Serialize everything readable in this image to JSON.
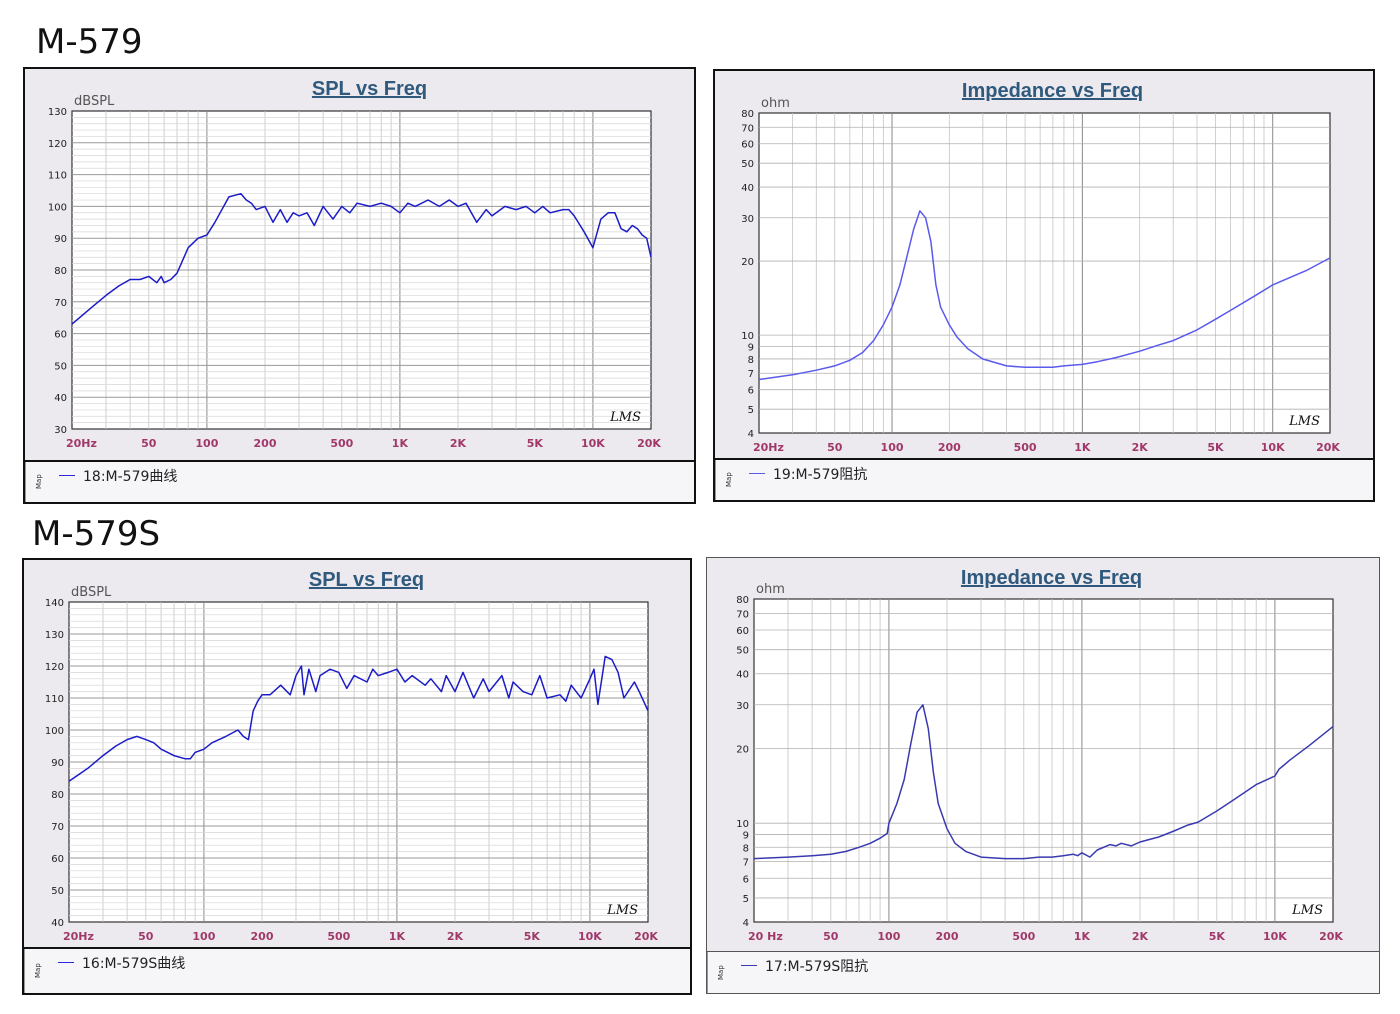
{
  "headings": {
    "top": "M-579",
    "bottom": "M-579S"
  },
  "charts": [
    {
      "id": "spl1",
      "chart_data": {
        "type": "line",
        "title": "SPL vs Freq",
        "ylabel": "dBSPL",
        "xscale": "log",
        "xlim": [
          20,
          20000
        ],
        "ylim": [
          30,
          130
        ],
        "yticks": [
          30,
          40,
          50,
          60,
          70,
          80,
          90,
          100,
          110,
          120,
          130
        ],
        "xtick_labels": [
          [
            "20Hz",
            20
          ],
          [
            "50",
            50
          ],
          [
            "100",
            100
          ],
          [
            "200",
            200
          ],
          [
            "500",
            500
          ],
          [
            "1K",
            1000
          ],
          [
            "2K",
            2000
          ],
          [
            "5K",
            5000
          ],
          [
            "10K",
            10000
          ],
          [
            "20K",
            20000
          ]
        ],
        "grid": true,
        "watermark": "LMS",
        "legend": "bottom",
        "series": [
          {
            "name": "18:M-579曲线",
            "color": "#1c1cc8",
            "x": [
              20,
              25,
              30,
              35,
              40,
              45,
              50,
              55,
              58,
              60,
              65,
              70,
              80,
              90,
              100,
              110,
              130,
              150,
              160,
              170,
              180,
              200,
              220,
              240,
              260,
              280,
              300,
              330,
              360,
              400,
              450,
              500,
              550,
              600,
              700,
              800,
              900,
              1000,
              1100,
              1200,
              1400,
              1600,
              1800,
              2000,
              2200,
              2500,
              2800,
              3000,
              3500,
              4000,
              4500,
              5000,
              5500,
              6000,
              7000,
              7500,
              8000,
              9000,
              10000,
              11000,
              12000,
              13000,
              14000,
              15000,
              16000,
              17000,
              18000,
              19000,
              20000
            ],
            "y": [
              63,
              68,
              72,
              75,
              77,
              77,
              78,
              76,
              78,
              76,
              77,
              79,
              87,
              90,
              91,
              95,
              103,
              104,
              102,
              101,
              99,
              100,
              95,
              99,
              95,
              98,
              97,
              98,
              94,
              100,
              96,
              100,
              98,
              101,
              100,
              101,
              100,
              98,
              101,
              100,
              102,
              100,
              102,
              100,
              101,
              95,
              99,
              97,
              100,
              99,
              100,
              98,
              100,
              98,
              99,
              99,
              97,
              92,
              87,
              96,
              98,
              98,
              93,
              92,
              94,
              93,
              91,
              90,
              84
            ]
          }
        ]
      }
    },
    {
      "id": "imp1",
      "chart_data": {
        "type": "line",
        "title": "Impedance vs Freq",
        "ylabel": "ohm",
        "xscale": "log",
        "yscale": "log",
        "xlim": [
          20,
          20000
        ],
        "ylim": [
          4,
          80
        ],
        "yticks": [
          4,
          5,
          6,
          7,
          8,
          9,
          10,
          20,
          30,
          40,
          50,
          60,
          70,
          80
        ],
        "xtick_labels": [
          [
            "20Hz",
            20
          ],
          [
            "50",
            50
          ],
          [
            "100",
            100
          ],
          [
            "200",
            200
          ],
          [
            "500",
            500
          ],
          [
            "1K",
            1000
          ],
          [
            "2K",
            2000
          ],
          [
            "5K",
            5000
          ],
          [
            "10K",
            10000
          ],
          [
            "20K",
            20000
          ]
        ],
        "grid": true,
        "watermark": "LMS",
        "legend": "bottom",
        "series": [
          {
            "name": "19:M-579阻抗",
            "color": "#5a5aee",
            "x": [
              20,
              30,
              40,
              50,
              60,
              70,
              80,
              90,
              100,
              110,
              120,
              130,
              140,
              150,
              160,
              170,
              180,
              200,
              220,
              250,
              300,
              400,
              500,
              600,
              700,
              800,
              1000,
              1200,
              1500,
              2000,
              2500,
              3000,
              4000,
              5000,
              6000,
              8000,
              10000,
              12000,
              15000,
              20000
            ],
            "y": [
              6.6,
              6.9,
              7.2,
              7.5,
              7.9,
              8.5,
              9.5,
              11,
              13,
              16,
              21,
              27,
              32,
              30,
              24,
              16,
              13,
              11,
              9.8,
              8.8,
              8.0,
              7.5,
              7.4,
              7.4,
              7.4,
              7.5,
              7.6,
              7.8,
              8.1,
              8.6,
              9.1,
              9.5,
              10.5,
              11.6,
              12.6,
              14.4,
              16.0,
              17.0,
              18.3,
              20.6
            ]
          }
        ]
      }
    },
    {
      "id": "spl2",
      "chart_data": {
        "type": "line",
        "title": "SPL vs Freq",
        "ylabel": "dBSPL",
        "xscale": "log",
        "xlim": [
          20,
          20000
        ],
        "ylim": [
          40,
          140
        ],
        "yticks": [
          40,
          50,
          60,
          70,
          80,
          90,
          100,
          110,
          120,
          130,
          140
        ],
        "xtick_labels": [
          [
            "20Hz",
            20
          ],
          [
            "50",
            50
          ],
          [
            "100",
            100
          ],
          [
            "200",
            200
          ],
          [
            "500",
            500
          ],
          [
            "1K",
            1000
          ],
          [
            "2K",
            2000
          ],
          [
            "5K",
            5000
          ],
          [
            "10K",
            10000
          ],
          [
            "20K",
            20000
          ]
        ],
        "grid": true,
        "watermark": "LMS",
        "legend": "bottom",
        "series": [
          {
            "name": "16:M-579S曲线",
            "color": "#1c1cc8",
            "x": [
              20,
              25,
              30,
              35,
              40,
              45,
              50,
              55,
              60,
              70,
              80,
              85,
              90,
              100,
              110,
              130,
              150,
              160,
              170,
              180,
              190,
              200,
              220,
              250,
              280,
              300,
              320,
              330,
              350,
              380,
              400,
              450,
              500,
              550,
              600,
              700,
              750,
              800,
              900,
              1000,
              1100,
              1200,
              1400,
              1500,
              1700,
              1800,
              2000,
              2200,
              2500,
              2800,
              3000,
              3500,
              3800,
              4000,
              4500,
              5000,
              5500,
              6000,
              7000,
              7500,
              8000,
              9000,
              10000,
              10500,
              11000,
              12000,
              13000,
              14000,
              15000,
              17000,
              18000,
              20000
            ],
            "y": [
              84,
              88,
              92,
              95,
              97,
              98,
              97,
              96,
              94,
              92,
              91,
              91,
              93,
              94,
              96,
              98,
              100,
              98,
              97,
              106,
              109,
              111,
              111,
              114,
              111,
              117,
              120,
              111,
              119,
              112,
              117,
              119,
              118,
              113,
              117,
              115,
              119,
              117,
              118,
              119,
              115,
              117,
              114,
              116,
              112,
              117,
              112,
              118,
              110,
              116,
              112,
              117,
              110,
              115,
              112,
              111,
              117,
              110,
              111,
              109,
              114,
              110,
              116,
              119,
              108,
              123,
              122,
              118,
              110,
              115,
              112,
              106
            ]
          }
        ]
      }
    },
    {
      "id": "imp2",
      "chart_data": {
        "type": "line",
        "title": "Impedance vs Freq",
        "ylabel": "ohm",
        "xscale": "log",
        "yscale": "log",
        "xlim": [
          20,
          20000
        ],
        "ylim": [
          4,
          80
        ],
        "yticks": [
          4,
          5,
          6,
          7,
          8,
          9,
          10,
          20,
          30,
          40,
          50,
          60,
          70,
          80
        ],
        "xtick_labels": [
          [
            "20 Hz",
            20
          ],
          [
            "50",
            50
          ],
          [
            "100",
            100
          ],
          [
            "200",
            200
          ],
          [
            "500",
            500
          ],
          [
            "1K",
            1000
          ],
          [
            "2K",
            2000
          ],
          [
            "5K",
            5000
          ],
          [
            "10K",
            10000
          ],
          [
            "20K",
            20000
          ]
        ],
        "grid": true,
        "watermark": "LMS",
        "legend": "bottom",
        "series": [
          {
            "name": "17:M-579S阻抗",
            "color": "#3a3ab0",
            "x": [
              20,
              30,
              40,
              50,
              60,
              70,
              80,
              90,
              98,
              100,
              110,
              120,
              130,
              140,
              150,
              160,
              170,
              180,
              200,
              220,
              250,
              300,
              400,
              500,
              600,
              700,
              800,
              900,
              950,
              1000,
              1100,
              1200,
              1400,
              1500,
              1600,
              1800,
              2000,
              2500,
              3000,
              3500,
              4000,
              5000,
              6000,
              8000,
              10000,
              10500,
              11000,
              12000,
              15000,
              20000
            ],
            "y": [
              7.2,
              7.3,
              7.4,
              7.5,
              7.7,
              8.0,
              8.3,
              8.7,
              9.1,
              10,
              12,
              15,
              21,
              28,
              30,
              24,
              16,
              12,
              9.5,
              8.3,
              7.7,
              7.3,
              7.2,
              7.2,
              7.3,
              7.3,
              7.4,
              7.5,
              7.4,
              7.6,
              7.3,
              7.8,
              8.2,
              8.1,
              8.3,
              8.1,
              8.4,
              8.8,
              9.3,
              9.8,
              10.1,
              11.2,
              12.3,
              14.3,
              15.5,
              16.5,
              17.0,
              18.0,
              20.5,
              24.5
            ]
          }
        ]
      }
    }
  ]
}
